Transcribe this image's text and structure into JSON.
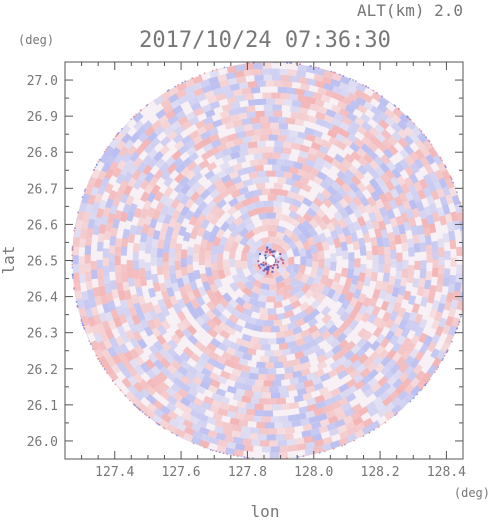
{
  "chart_data": {
    "type": "heatmap",
    "subtype": "polar radar sector image (doppler-like field)",
    "title": "2017/10/24 07:36:30",
    "altitude_label": "ALT(km) 2.0",
    "xlabel": "lon",
    "ylabel": "lat",
    "x_unit": "(deg)",
    "y_unit": "(deg)",
    "xlim": [
      127.25,
      128.45
    ],
    "ylim": [
      25.95,
      27.05
    ],
    "x_ticks": [
      127.4,
      127.6,
      127.8,
      128.0,
      128.2,
      128.4
    ],
    "x_tick_labels": [
      "127.4",
      "127.6",
      "127.8",
      "128.0",
      "128.2",
      "128.4"
    ],
    "y_ticks": [
      26.0,
      26.1,
      26.2,
      26.3,
      26.4,
      26.5,
      26.6,
      26.7,
      26.8,
      26.9,
      27.0
    ],
    "y_tick_labels": [
      "26.0",
      "26.1",
      "26.2",
      "26.3",
      "26.4",
      "26.5",
      "26.6",
      "26.7",
      "26.8",
      "26.9",
      "27.0"
    ],
    "center": {
      "lon": 127.87,
      "lat": 26.5
    },
    "radius_deg": 0.55,
    "colors": {
      "positive": "#f2a5a5",
      "negative": "#aab2f0",
      "neutral": "#f7f0f4",
      "axis": "#555555"
    },
    "grid": false,
    "legend": "none"
  }
}
